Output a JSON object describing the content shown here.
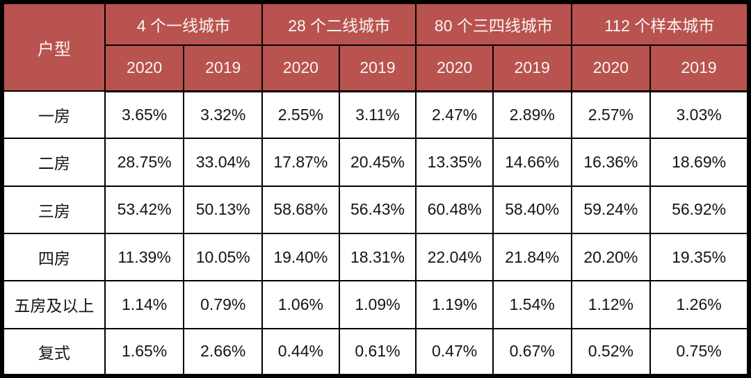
{
  "chart_data": {
    "type": "table",
    "corner_label": "户型",
    "column_groups": [
      {
        "label": "4 个一线城市",
        "sub_columns": [
          "2020",
          "2019"
        ]
      },
      {
        "label": "28 个二线城市",
        "sub_columns": [
          "2020",
          "2019"
        ]
      },
      {
        "label": "80 个三四线城市",
        "sub_columns": [
          "2020",
          "2019"
        ]
      },
      {
        "label": "112 个样本城市",
        "sub_columns": [
          "2020",
          "2019"
        ]
      }
    ],
    "rows": [
      {
        "label": "一房",
        "values": [
          "3.65%",
          "3.32%",
          "2.55%",
          "3.11%",
          "2.47%",
          "2.89%",
          "2.57%",
          "3.03%"
        ]
      },
      {
        "label": "二房",
        "values": [
          "28.75%",
          "33.04%",
          "17.87%",
          "20.45%",
          "13.35%",
          "14.66%",
          "16.36%",
          "18.69%"
        ]
      },
      {
        "label": "三房",
        "values": [
          "53.42%",
          "50.13%",
          "58.68%",
          "56.43%",
          "60.48%",
          "58.40%",
          "59.24%",
          "56.92%"
        ]
      },
      {
        "label": "四房",
        "values": [
          "11.39%",
          "10.05%",
          "19.40%",
          "18.31%",
          "22.04%",
          "21.84%",
          "20.20%",
          "19.35%"
        ]
      },
      {
        "label": "五房及以上",
        "values": [
          "1.14%",
          "0.79%",
          "1.06%",
          "1.09%",
          "1.19%",
          "1.54%",
          "1.12%",
          "1.26%"
        ]
      },
      {
        "label": "复式",
        "values": [
          "1.65%",
          "2.66%",
          "0.44%",
          "0.61%",
          "0.47%",
          "0.67%",
          "0.52%",
          "0.75%"
        ]
      }
    ]
  },
  "colors": {
    "header_bg": "#b85350",
    "header_text": "#fbf4f3",
    "grid_border": "#000000",
    "body_bg": "#ffffff",
    "body_text": "#141414"
  }
}
